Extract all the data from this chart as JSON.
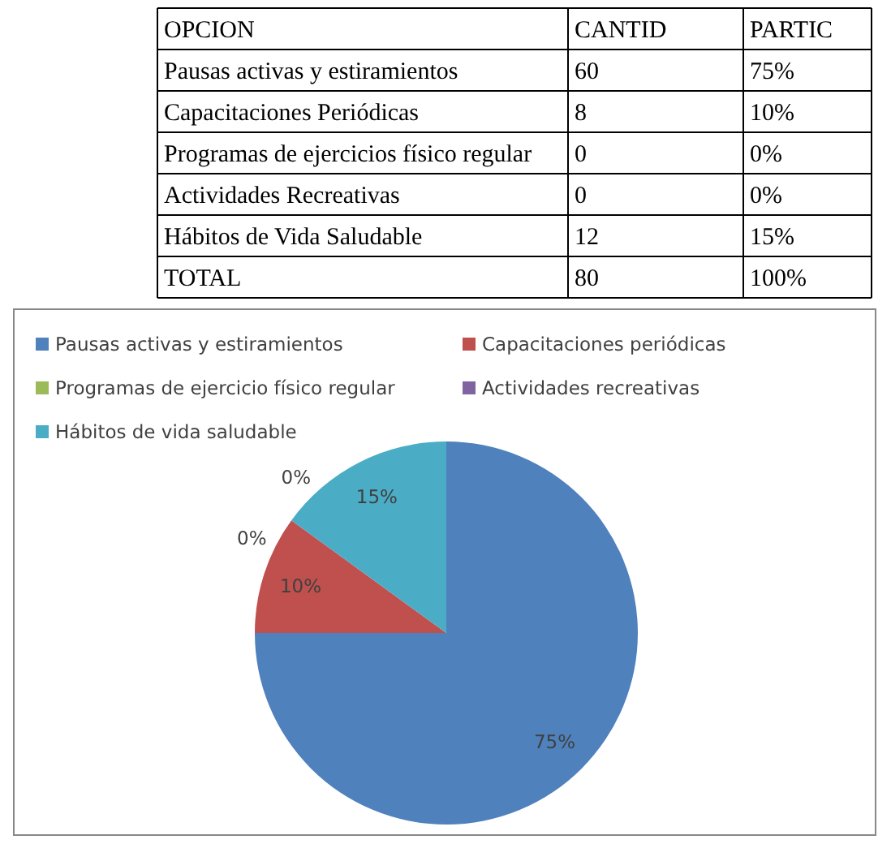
{
  "chart_data": [
    {
      "type": "other",
      "xlabel": "OPCION",
      "data_labels": true,
      "categories": [
        "Pausas activas y estiramientos",
        "Capacitaciones Periódicas",
        "Programas de ejercicios físico regular",
        "Actividades Recreativas",
        "Hábitos de Vida Saludable",
        "TOTAL"
      ],
      "series": [
        {
          "name": "CANTID",
          "values": [
            60,
            8,
            0,
            0,
            12,
            80
          ]
        },
        {
          "name": "PARTIC",
          "values": [
            75,
            10,
            0,
            0,
            15,
            100
          ],
          "value_labels": [
            "75%",
            "10%",
            "0%",
            "0%",
            "15%",
            "100%"
          ]
        }
      ]
    },
    {
      "type": "pie",
      "legend": "top",
      "categories": [
        "Pausas activas y estiramientos",
        "Capacitaciones periódicas",
        "Programas de ejercicio físico regular",
        "Actividades recreativas",
        "Hábitos de vida saludable"
      ],
      "values": [
        75,
        10,
        0,
        0,
        15
      ],
      "colors": [
        "#4f81bd",
        "#c0504d",
        "#9bbb59",
        "#8064a2",
        "#4bacc6"
      ],
      "value_labels": [
        "75%",
        "10%",
        "0%",
        "0%",
        "15%"
      ]
    }
  ]
}
